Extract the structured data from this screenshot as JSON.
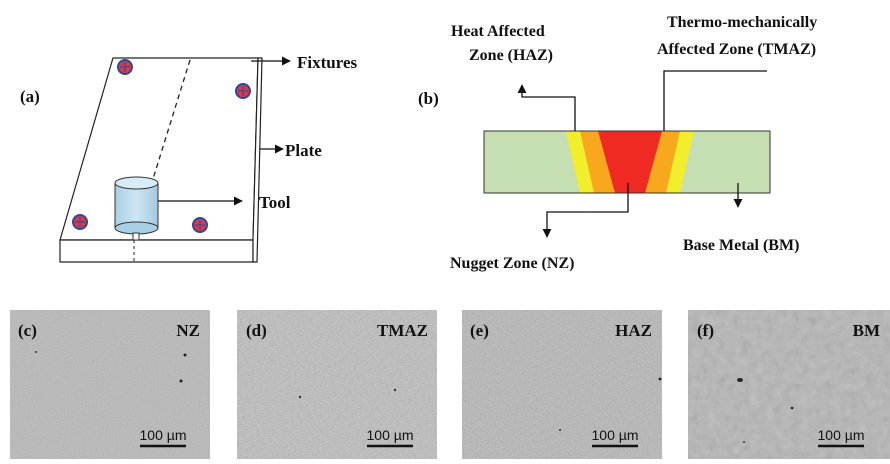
{
  "panel_a": {
    "label": "(a)",
    "fixtures": "Fixtures",
    "plate": "Plate",
    "tool": "Tool"
  },
  "panel_b": {
    "label": "(b)",
    "haz_line1": "Heat Affected",
    "haz_line2": "Zone  (HAZ)",
    "tmaz_line1": "Thermo-mechanically",
    "tmaz_line2": "Affected  Zone  (TMAZ)",
    "nz": "Nugget Zone  (NZ)",
    "bm": "Base Metal (BM)",
    "colors": {
      "base_metal": "#c6dfb2",
      "haz": "#f2ee2c",
      "tmaz": "#f7a81c",
      "nugget": "#ee2a23"
    }
  },
  "micrographs": [
    {
      "label": "(c)",
      "zone": "NZ",
      "scale": "100 µm"
    },
    {
      "label": "(d)",
      "zone": "TMAZ",
      "scale": "100 µm"
    },
    {
      "label": "(e)",
      "zone": "HAZ",
      "scale": "100 µm"
    },
    {
      "label": "(f)",
      "zone": "BM",
      "scale": "100 µm"
    }
  ]
}
